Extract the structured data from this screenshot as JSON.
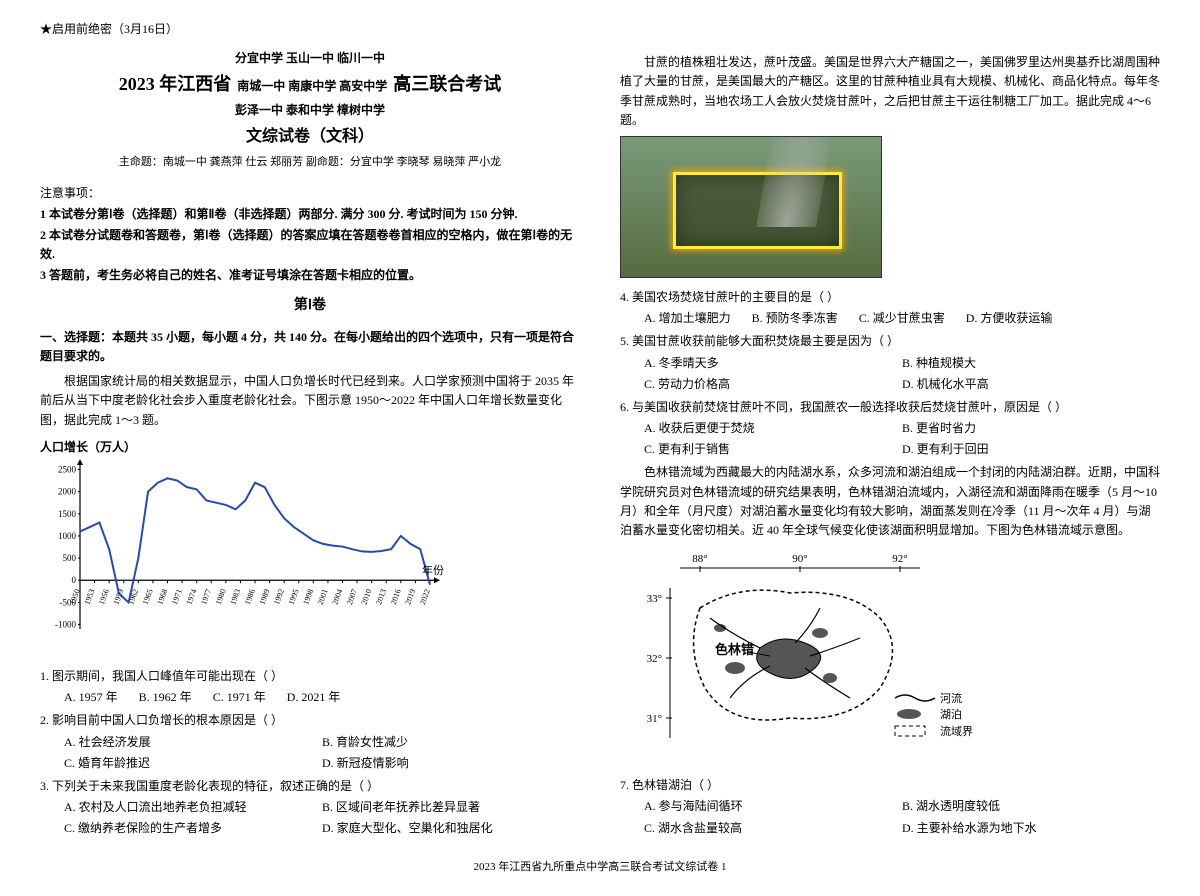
{
  "top_secret": "★启用前绝密（3月16日）",
  "schools_top": "分宜中学  玉山一中  临川一中",
  "title_year": "2023 年江西省",
  "title_schools_mid": "南城一中  南康中学  高安中学",
  "title_suffix": "高三联合考试",
  "schools_bottom": "彭泽一中  泰和中学  樟树中学",
  "subject": "文综试卷（文科）",
  "authors": "主命题：南城一中    龚燕萍  仕云  郑丽芳    副命题：分宜中学    李晓琴  易晓萍  严小龙",
  "notes_heading": "注意事项：",
  "notes": [
    "1 本试卷分第Ⅰ卷（选择题）和第Ⅱ卷（非选择题）两部分. 满分 300 分. 考试时间为 150 分钟.",
    "2 本试卷分试题卷和答题卷，第Ⅰ卷（选择题）的答案应填在答题卷卷首相应的空格内，做在第Ⅰ卷的无效.",
    "3 答题前，考生务必将自己的姓名、准考证号填涂在答题卡相应的位置。"
  ],
  "section1": "第Ⅰ卷",
  "section1_instr": "一、选择题：本题共 35 小题，每小题 4 分，共 140 分。在每小题给出的四个选项中，只有一项是符合题目要求的。",
  "passage1": "根据国家统计局的相关数据显示，中国人口负增长时代已经到来。人口学家预测中国将于 2035 年前后从当下中度老龄化社会步入重度老龄化社会。下图示意 1950～2022 年中国人口年增长数量变化图，据此完成 1～3 题。",
  "chart1": {
    "title": "人口增长（万人）",
    "x_label_end": "年份",
    "yticks": [
      -1000,
      -500,
      0,
      500,
      1000,
      1500,
      2000,
      2500
    ],
    "ylim": [
      -1100,
      2600
    ],
    "xticks": [
      "1950",
      "1953",
      "1956",
      "1959",
      "1962",
      "1965",
      "1968",
      "1971",
      "1974",
      "1977",
      "1980",
      "1983",
      "1986",
      "1989",
      "1992",
      "1995",
      "1998",
      "2001",
      "2004",
      "2007",
      "2010",
      "2013",
      "2016",
      "2019",
      "2022"
    ],
    "line_color": "#2b4aa8",
    "axis_color": "#000000",
    "grid_color": "#cccccc",
    "values": [
      1100,
      1200,
      1300,
      700,
      -300,
      -500,
      500,
      2000,
      2200,
      2300,
      2250,
      2100,
      2050,
      1800,
      1750,
      1700,
      1600,
      1800,
      2200,
      2100,
      1700,
      1400,
      1200,
      1050,
      900,
      820,
      780,
      760,
      700,
      650,
      640,
      660,
      700,
      1000,
      820,
      700,
      -100
    ]
  },
  "q1": {
    "stem": "1. 图示期间，我国人口峰值年可能出现在（   ）",
    "opts": [
      "A. 1957 年",
      "B. 1962 年",
      "C. 1971 年",
      "D. 2021 年"
    ]
  },
  "q2": {
    "stem": "2. 影响目前中国人口负增长的根本原因是（   ）",
    "opts": [
      "A. 社会经济发展",
      "B. 育龄女性减少",
      "C. 婚育年龄推迟",
      "D. 新冠疫情影响"
    ]
  },
  "q3": {
    "stem": "3. 下列关于未来我国重度老龄化表现的特征，叙述正确的是（   ）",
    "opts": [
      "A. 农村及人口流出地养老负担减轻",
      "B. 区域间老年抚养比差异显著",
      "C. 缴纳养老保险的生产者增多",
      "D. 家庭大型化、空巢化和独居化"
    ]
  },
  "passage2": "甘蔗的植株粗壮发达，蔗叶茂盛。美国是世界六大产糖国之一，美国佛罗里达州奥基乔比湖周围种植了大量的甘蔗，是美国最大的产糖区。这里的甘蔗种植业具有大规模、机械化、商品化特点。每年冬季甘蔗成熟时，当地农场工人会放火焚烧甘蔗叶，之后把甘蔗主干运往制糖工厂加工。据此完成 4～6 题。",
  "q4": {
    "stem": "4. 美国农场焚烧甘蔗叶的主要目的是（   ）",
    "opts": [
      "A. 增加土壤肥力",
      "B. 预防冬季冻害",
      "C. 减少甘蔗虫害",
      "D. 方便收获运输"
    ]
  },
  "q5": {
    "stem": "5. 美国甘蔗收获前能够大面积焚烧最主要是因为（   ）",
    "opts": [
      "A. 冬季晴天多",
      "B. 种植规模大",
      "C. 劳动力价格高",
      "D. 机械化水平高"
    ]
  },
  "q6": {
    "stem": "6. 与美国收获前焚烧甘蔗叶不同，我国蔗农一般选择收获后焚烧甘蔗叶，原因是（   ）",
    "opts": [
      "A. 收获后更便于焚烧",
      "B. 更省时省力",
      "C. 更有利于销售",
      "D. 更有利于回田"
    ]
  },
  "passage3": "色林错流域为西藏最大的内陆湖水系，众多河流和湖泊组成一个封闭的内陆湖泊群。近期，中国科学院研究员对色林错流域的研究结果表明，色林错湖泊流域内，入湖径流和湖面降雨在暖季（5 月～10 月）和全年（月尺度）对湖泊蓄水量变化均有较大影响，湖面蒸发则在冷季（11 月～次年 4 月）与湖泊蓄水量变化密切相关。近 40 年全球气候变化使该湖面积明显增加。下图为色林错流域示意图。",
  "map": {
    "lons": [
      "88°",
      "90°",
      "92°"
    ],
    "lats": [
      "33°",
      "32°",
      "31°"
    ],
    "label": "色林错",
    "legend": {
      "river": "河流",
      "lake": "湖泊",
      "basin": "流域界"
    },
    "line_color": "#000",
    "dash": "4 3"
  },
  "q7": {
    "stem": "7. 色林错湖泊（   ）",
    "opts": [
      "A. 参与海陆间循环",
      "B. 湖水透明度较低",
      "C. 湖水含盐量较高",
      "D. 主要补给水源为地下水"
    ]
  },
  "footer": "2023 年江西省九所重点中学高三联合考试文综试卷   1"
}
